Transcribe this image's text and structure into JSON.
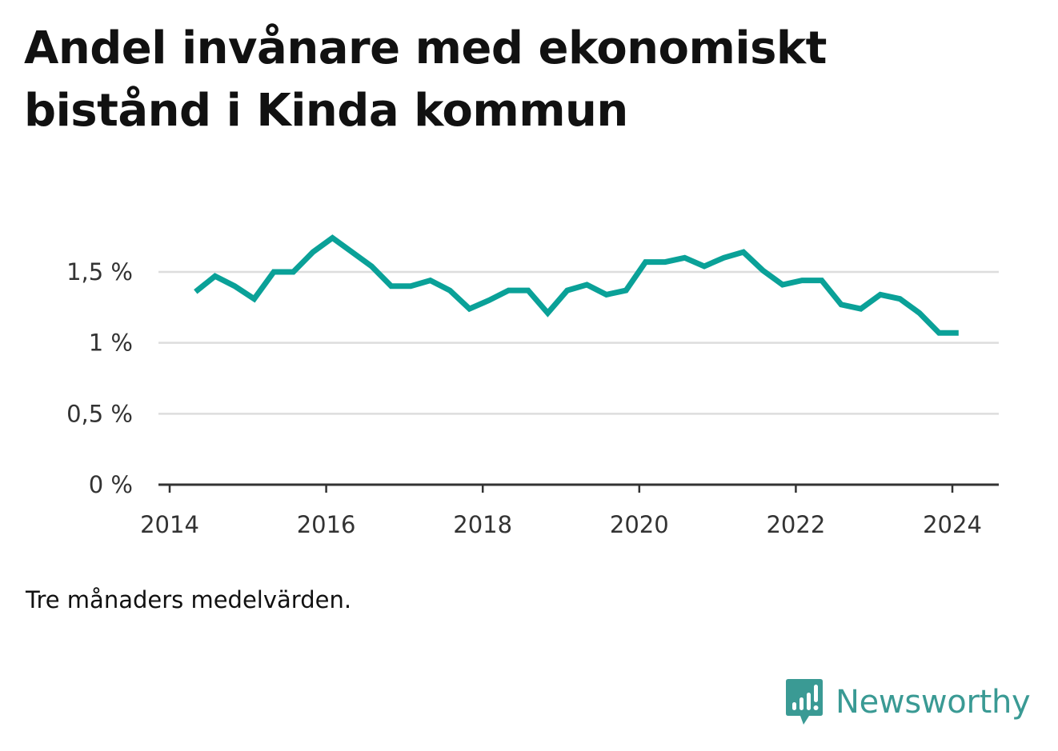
{
  "title": "Andel invånare med ekonomiskt bistånd i Kinda kommun",
  "note": "Tre månaders medelvärden.",
  "brand": {
    "name": "Newsworthy",
    "icon": "newsworthy-logo-icon"
  },
  "colors": {
    "line": "#0aa198",
    "grid": "#dddddd",
    "axis": "#333333",
    "brand": "#3a9a94"
  },
  "chart_data": {
    "type": "line",
    "title": "Andel invånare med ekonomiskt bistånd i Kinda kommun",
    "xlabel": "",
    "ylabel": "",
    "xlim": [
      2014,
      2024.3
    ],
    "ylim": [
      0,
      1.85
    ],
    "grid": true,
    "x_ticks": [
      2014,
      2016,
      2018,
      2020,
      2022,
      2024
    ],
    "x_tick_labels": [
      "2014",
      "2016",
      "2018",
      "2020",
      "2022",
      "2024"
    ],
    "y_ticks": [
      0,
      0.5,
      1,
      1.5
    ],
    "y_tick_labels": [
      "0 %",
      "0,5 %",
      "1 %",
      "1,5 %"
    ],
    "series": [
      {
        "x": [
          2014.33,
          2014.58,
          2014.83,
          2015.08,
          2015.33,
          2015.58,
          2015.83,
          2016.08,
          2016.33,
          2016.58,
          2016.83,
          2017.08,
          2017.33,
          2017.58,
          2017.83,
          2018.08,
          2018.33,
          2018.58,
          2018.83,
          2019.08,
          2019.33,
          2019.58,
          2019.83,
          2020.08,
          2020.33,
          2020.58,
          2020.83,
          2021.08,
          2021.33,
          2021.58,
          2021.83,
          2022.08,
          2022.33,
          2022.58,
          2022.83,
          2023.08,
          2023.33,
          2023.58,
          2023.83,
          2024.08
        ],
        "values": [
          1.36,
          1.47,
          1.4,
          1.31,
          1.5,
          1.5,
          1.64,
          1.74,
          1.64,
          1.54,
          1.4,
          1.4,
          1.44,
          1.37,
          1.24,
          1.3,
          1.37,
          1.37,
          1.21,
          1.37,
          1.41,
          1.34,
          1.37,
          1.57,
          1.57,
          1.6,
          1.54,
          1.6,
          1.64,
          1.51,
          1.41,
          1.44,
          1.44,
          1.27,
          1.24,
          1.34,
          1.31,
          1.21,
          1.07,
          1.07
        ]
      }
    ]
  }
}
